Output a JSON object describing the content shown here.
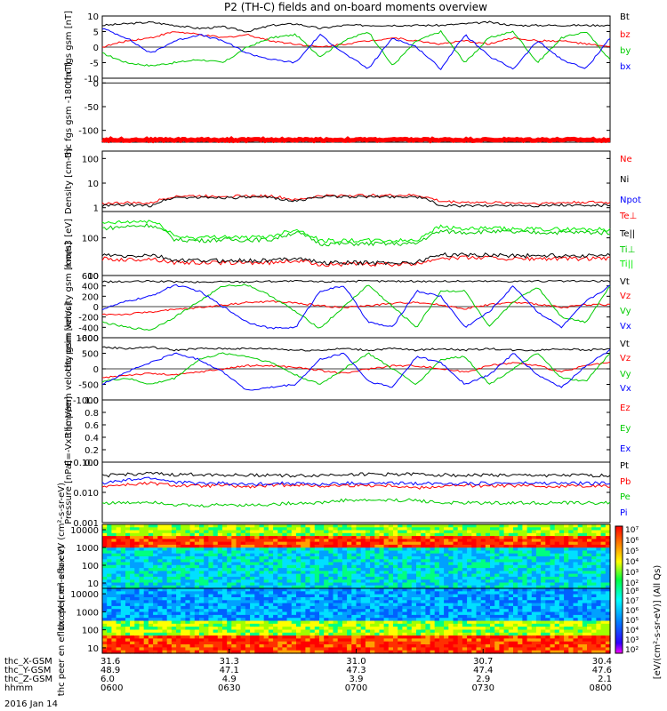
{
  "title": "P2 (TH-C) fields and on-board moments overview",
  "date_label": "2016 Jan 14",
  "colorbar": {
    "label": "[eV/(cm²-s-sr-eV)] (All Qs)",
    "top_ticks": [
      "10⁷",
      "10⁶",
      "10⁵",
      "10⁴",
      "10³",
      "10²"
    ],
    "bottom_ticks": [
      "10⁸",
      "10⁷",
      "10⁶",
      "10⁵",
      "10⁴",
      "10³",
      "10²"
    ]
  },
  "ephemeris": {
    "row_labels": [
      "thc_X-GSM",
      "thc_Y-GSM",
      "thc_Z-GSM",
      "hhmm"
    ],
    "columns": [
      [
        "31.6",
        "48.9",
        "6.0",
        "0600"
      ],
      [
        "31.3",
        "47.1",
        "4.9",
        "0630"
      ],
      [
        "31.0",
        "47.3",
        "3.9",
        "0700"
      ],
      [
        "30.7",
        "47.4",
        "2.9",
        "0730"
      ],
      [
        "30.4",
        "47.6",
        "2.1",
        "0800"
      ]
    ]
  },
  "chart_data": [
    {
      "id": "fgs",
      "type": "line",
      "ylabel": "thc fgs gsm [nT]",
      "ylim": [
        -10,
        10
      ],
      "yticks": [
        "10",
        "5",
        "0",
        "-5",
        "-10"
      ],
      "series": [
        {
          "name": "Bt",
          "color": "#000000",
          "values": [
            7,
            7.5,
            8,
            7,
            6,
            6.5,
            5,
            7,
            7.5,
            6,
            7,
            7,
            7,
            7,
            7,
            7.5,
            8,
            7,
            7,
            7,
            7,
            7
          ]
        },
        {
          "name": "bz",
          "color": "#ff0000",
          "values": [
            0,
            2,
            3,
            5,
            4,
            3,
            4,
            2,
            1,
            0,
            1,
            2,
            3,
            2,
            1,
            2,
            1,
            3,
            2,
            2,
            1,
            0
          ]
        },
        {
          "name": "by",
          "color": "#00cc00",
          "values": [
            -2,
            -5,
            -6,
            -5,
            -4,
            -5,
            0,
            3,
            4,
            -3,
            2,
            5,
            -6,
            2,
            5,
            -5,
            3,
            5,
            -5,
            3,
            5,
            -4
          ]
        },
        {
          "name": "bx",
          "color": "#0000ff",
          "values": [
            6,
            3,
            -2,
            2,
            4,
            2,
            -2,
            -4,
            -5,
            4,
            -2,
            -7,
            3,
            0,
            -7,
            4,
            -3,
            -7,
            2,
            -4,
            -7,
            3
          ]
        }
      ]
    },
    {
      "id": "fgs_gsm_mag",
      "type": "line",
      "ylabel": "thc fgs gsm -180 [nT]",
      "ylim": [
        -125,
        10
      ],
      "yticks": [
        "0",
        "-50",
        "-100"
      ],
      "series": [
        {
          "name": "",
          "color": "#ff0000",
          "values": [
            -120,
            -120,
            -120,
            -120,
            -120,
            -120,
            -120,
            -120,
            -120,
            -120,
            -120,
            -120
          ]
        }
      ]
    },
    {
      "id": "density",
      "type": "line",
      "ylabel": "Density [cm-3]",
      "log": true,
      "ylim": [
        0.7,
        200
      ],
      "yticks": [
        "100",
        "10",
        "1"
      ],
      "series": [
        {
          "name": "Ne",
          "color": "#ff0000",
          "values": [
            1.5,
            1.6,
            1.5,
            3,
            3,
            3,
            3,
            3,
            2,
            3,
            3.2,
            3.2,
            3.2,
            3.2,
            1.8,
            1.7,
            1.6,
            1.6,
            1.5,
            1.6,
            1.7,
            1.6
          ]
        },
        {
          "name": "Ni",
          "color": "#000000",
          "values": [
            1.2,
            1.3,
            1.2,
            2.6,
            2.6,
            2.6,
            2.6,
            2.6,
            1.8,
            2.8,
            2.8,
            2.8,
            2.8,
            2.8,
            1.2,
            1.2,
            1.2,
            1.3,
            1.2,
            1.3,
            1.2,
            1.3
          ]
        },
        {
          "name": "Npot",
          "color": "#0000ff",
          "values": []
        }
      ]
    },
    {
      "id": "temperature",
      "type": "line",
      "ylabel": "mom3 [eV]",
      "log": true,
      "ylim": [
        10,
        500
      ],
      "yticks": [
        "100",
        "10"
      ],
      "series": [
        {
          "name": "Te⊥",
          "color": "#ff0000",
          "values": [
            28,
            26,
            28,
            22,
            22,
            22,
            22,
            22,
            25,
            20,
            20,
            20,
            20,
            20,
            30,
            30,
            30,
            28,
            28,
            28,
            28,
            28
          ]
        },
        {
          "name": "Te||",
          "color": "#000000",
          "values": [
            35,
            32,
            35,
            25,
            25,
            25,
            25,
            25,
            30,
            22,
            22,
            22,
            22,
            22,
            36,
            35,
            36,
            34,
            34,
            34,
            34,
            34
          ]
        },
        {
          "name": "Ti⊥",
          "color": "#00cc00",
          "values": [
            180,
            200,
            220,
            90,
            85,
            90,
            88,
            90,
            140,
            70,
            70,
            70,
            70,
            70,
            150,
            140,
            150,
            140,
            140,
            140,
            140,
            140
          ]
        },
        {
          "name": "Ti||",
          "color": "#00ee00",
          "values": [
            240,
            260,
            280,
            110,
            100,
            110,
            100,
            110,
            170,
            85,
            85,
            85,
            85,
            85,
            200,
            170,
            180,
            170,
            170,
            170,
            170,
            170
          ]
        }
      ]
    },
    {
      "id": "peim_velocity",
      "type": "line",
      "ylabel": "thc peim velocity gsm [km/s]",
      "ylim": [
        -600,
        600
      ],
      "yticks": [
        "600",
        "400",
        "200",
        "0",
        "-200",
        "-400",
        "-600"
      ],
      "series": [
        {
          "name": "Vt",
          "color": "#000000",
          "values": [
            480,
            480,
            490,
            480,
            470,
            480,
            480,
            490,
            490,
            480,
            490,
            490,
            490,
            490,
            490,
            490,
            490,
            490,
            490,
            490,
            490,
            490
          ]
        },
        {
          "name": "Vz",
          "color": "#ff0000",
          "values": [
            -150,
            -150,
            -100,
            -60,
            -20,
            30,
            80,
            100,
            70,
            20,
            -20,
            20,
            60,
            90,
            30,
            -40,
            40,
            80,
            50,
            -20,
            40,
            40
          ]
        },
        {
          "name": "Vy",
          "color": "#00cc00",
          "values": [
            -300,
            -400,
            -450,
            -200,
            100,
            400,
            420,
            200,
            -100,
            -420,
            0,
            420,
            0,
            -400,
            300,
            300,
            -400,
            100,
            380,
            -200,
            -300,
            400
          ]
        },
        {
          "name": "Vx",
          "color": "#0000ff",
          "values": [
            -50,
            100,
            200,
            420,
            300,
            0,
            -300,
            -420,
            -400,
            300,
            400,
            -300,
            -400,
            300,
            200,
            -400,
            -100,
            400,
            -100,
            -400,
            100,
            400
          ]
        }
      ]
    },
    {
      "id": "peem_velocity",
      "type": "line",
      "ylabel": "thc peem velocity gsm [km/s]",
      "ylim": [
        -1000,
        1000
      ],
      "yticks": [
        "1000",
        "500",
        "0",
        "-500",
        "-1000"
      ],
      "series": [
        {
          "name": "Vt",
          "color": "#000000",
          "values": [
            700,
            650,
            700,
            600,
            650,
            650,
            650,
            650,
            600,
            600,
            650,
            600,
            650,
            600,
            650,
            600,
            650,
            600,
            600,
            650,
            600,
            650
          ]
        },
        {
          "name": "Vz",
          "color": "#ff0000",
          "values": [
            -300,
            -200,
            -150,
            -200,
            -100,
            0,
            100,
            100,
            50,
            -50,
            -150,
            0,
            100,
            100,
            0,
            -100,
            100,
            200,
            100,
            -100,
            100,
            200
          ]
        },
        {
          "name": "Vy",
          "color": "#00cc00",
          "values": [
            -400,
            -300,
            -500,
            -300,
            300,
            500,
            400,
            200,
            -200,
            -500,
            0,
            500,
            0,
            -500,
            300,
            400,
            -500,
            0,
            500,
            -300,
            -400,
            500
          ]
        },
        {
          "name": "Vx",
          "color": "#0000ff",
          "values": [
            -500,
            -100,
            200,
            500,
            300,
            -100,
            -700,
            -600,
            -500,
            300,
            500,
            -400,
            -600,
            400,
            200,
            -500,
            -200,
            500,
            -200,
            -600,
            100,
            600
          ]
        }
      ]
    },
    {
      "id": "efield",
      "type": "line",
      "ylabel": "E=-VxB [mV/m]",
      "ylim": [
        0,
        1
      ],
      "yticks": [
        "1.0",
        "0.8",
        "0.6",
        "0.4",
        "0.2",
        "0.0"
      ],
      "series": [
        {
          "name": "Ez",
          "color": "#ff0000",
          "values": []
        },
        {
          "name": "Ey",
          "color": "#00cc00",
          "values": []
        },
        {
          "name": "Ex",
          "color": "#0000ff",
          "values": []
        }
      ]
    },
    {
      "id": "pressure",
      "type": "line",
      "ylabel": "Pressure [nPa]",
      "log": true,
      "ylim": [
        0.001,
        0.1
      ],
      "yticks": [
        "0.100",
        "0.010",
        "0.001"
      ],
      "series": [
        {
          "name": "Pt",
          "color": "#000000",
          "values": [
            0.035,
            0.04,
            0.042,
            0.038,
            0.04,
            0.038,
            0.037,
            0.038,
            0.035,
            0.037,
            0.04,
            0.04,
            0.04,
            0.04,
            0.038,
            0.036,
            0.038,
            0.036,
            0.037,
            0.036,
            0.037,
            0.036
          ]
        },
        {
          "name": "Pb",
          "color": "#ff0000",
          "values": [
            0.016,
            0.018,
            0.02,
            0.017,
            0.016,
            0.017,
            0.015,
            0.017,
            0.018,
            0.016,
            0.017,
            0.017,
            0.017,
            0.014,
            0.016,
            0.017,
            0.016,
            0.017,
            0.016,
            0.016,
            0.017,
            0.016
          ]
        },
        {
          "name": "Pe",
          "color": "#00cc00",
          "values": [
            0.0045,
            0.0045,
            0.005,
            0.004,
            0.0035,
            0.004,
            0.0038,
            0.004,
            0.0045,
            0.0045,
            0.0055,
            0.0055,
            0.0055,
            0.0055,
            0.0045,
            0.0045,
            0.0045,
            0.0045,
            0.0045,
            0.0045,
            0.0045,
            0.0045
          ]
        },
        {
          "name": "Pi",
          "color": "#0000ff",
          "values": [
            0.02,
            0.025,
            0.03,
            0.022,
            0.02,
            0.02,
            0.018,
            0.02,
            0.02,
            0.018,
            0.02,
            0.02,
            0.02,
            0.02,
            0.02,
            0.02,
            0.02,
            0.02,
            0.02,
            0.02,
            0.02,
            0.02
          ]
        }
      ]
    },
    {
      "id": "ion_spectrogram",
      "type": "heatmap",
      "ylabel": "thc peir en eflux eV (cm²-s-sr-eV)",
      "log": true,
      "ylim": [
        5,
        20000
      ],
      "yticks": [
        "10000",
        "1000",
        "100",
        "10"
      ]
    },
    {
      "id": "electron_spectrogram",
      "type": "heatmap",
      "ylabel": "thc peer en eflux eV (cm²-s-sr-eV)",
      "log": true,
      "ylim": [
        5,
        20000
      ],
      "yticks": [
        "10000",
        "1000",
        "100",
        "10"
      ]
    }
  ]
}
